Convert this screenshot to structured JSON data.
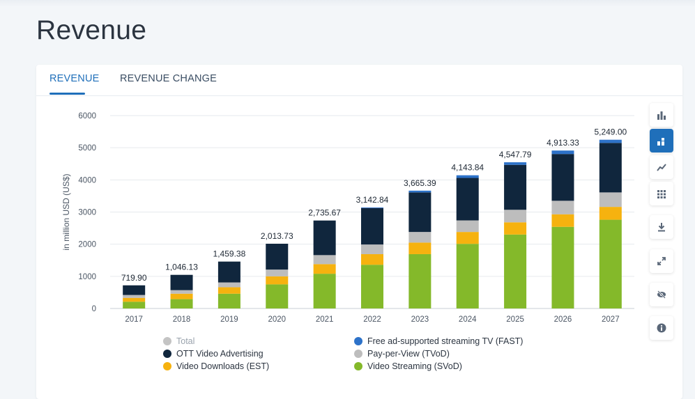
{
  "page": {
    "title": "Revenue"
  },
  "tabs": [
    {
      "label": "REVENUE",
      "active": true
    },
    {
      "label": "REVENUE CHANGE",
      "active": false
    }
  ],
  "toolbar": [
    {
      "icon": "bar-chart-icon",
      "active": false
    },
    {
      "icon": "stacked-bar-icon",
      "active": true
    },
    {
      "icon": "trend-line-icon",
      "active": false
    },
    {
      "icon": "table-grid-icon",
      "active": false
    },
    {
      "icon": "download-icon",
      "active": false
    },
    {
      "icon": "fullscreen-icon",
      "active": false
    },
    {
      "icon": "hide-icon",
      "active": false
    },
    {
      "icon": "info-icon",
      "active": false
    }
  ],
  "chart_data": {
    "type": "bar",
    "stacked": true,
    "title": "Revenue",
    "xlabel": "",
    "ylabel": "in million USD (US$)",
    "ylim": [
      0,
      6000
    ],
    "yticks": [
      0,
      1000,
      2000,
      3000,
      4000,
      5000,
      6000
    ],
    "grid": true,
    "legend_position": "bottom",
    "categories": [
      "2017",
      "2018",
      "2019",
      "2020",
      "2021",
      "2022",
      "2023",
      "2024",
      "2025",
      "2026",
      "2027"
    ],
    "totals_labels": [
      "719.90",
      "1,046.13",
      "1,459.38",
      "2,013.73",
      "2,735.67",
      "3,142.84",
      "3,665.39",
      "4,143.84",
      "4,547.79",
      "4,913.33",
      "5,249.00"
    ],
    "series": [
      {
        "name": "Video Streaming (SVoD)",
        "color": "#84b92a",
        "values": [
          210,
          290,
          460,
          750,
          1080,
          1360,
          1690,
          2010,
          2300,
          2540,
          2760
        ]
      },
      {
        "name": "Video Downloads (EST)",
        "color": "#f6b20f",
        "values": [
          120,
          170,
          200,
          250,
          300,
          330,
          360,
          370,
          380,
          390,
          400
        ]
      },
      {
        "name": "Pay-per-View (TVoD)",
        "color": "#bdbdbd",
        "values": [
          90,
          110,
          150,
          210,
          280,
          300,
          330,
          360,
          390,
          420,
          450
        ]
      },
      {
        "name": "OTT Video Advertising",
        "color": "#10263d",
        "values": [
          300,
          476,
          649,
          804,
          1076,
          1133,
          1230,
          1321,
          1398,
          1455,
          1540
        ]
      },
      {
        "name": "Free ad-supported streaming TV (FAST)",
        "color": "#2d72c9",
        "values": [
          0,
          0,
          0,
          0,
          0,
          20,
          55,
          83,
          80,
          108,
          99
        ]
      }
    ],
    "legend": [
      {
        "label": "Total",
        "color": "#c4c4c4",
        "muted": true
      },
      {
        "label": "Free ad-supported streaming TV (FAST)",
        "color": "#2d72c9",
        "muted": false
      },
      {
        "label": "OTT Video Advertising",
        "color": "#10263d",
        "muted": false
      },
      {
        "label": "Pay-per-View (TVoD)",
        "color": "#bdbdbd",
        "muted": false
      },
      {
        "label": "Video Downloads (EST)",
        "color": "#f6b20f",
        "muted": false
      },
      {
        "label": "Video Streaming (SVoD)",
        "color": "#84b92a",
        "muted": false
      }
    ]
  }
}
